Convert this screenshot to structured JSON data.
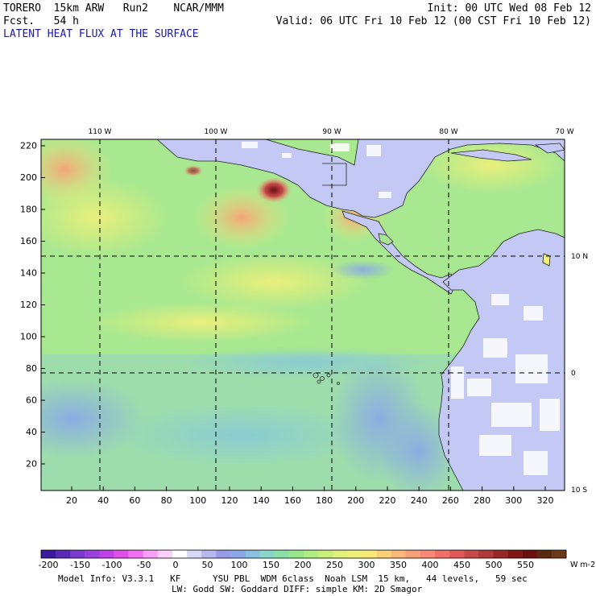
{
  "header": {
    "left_line1": "TORERO  15km ARW   Run2    NCAR/MMM",
    "left_line2": "Fcst.   54 h",
    "right_line1": "Init: 00 UTC Wed 08 Feb 12",
    "right_line2": "Valid: 06 UTC Fri 10 Feb 12 (00 CST Fri 10 Feb 12)",
    "title": "LATENT HEAT FLUX AT THE SURFACE"
  },
  "map": {
    "lon_labels": [
      "110 W",
      "100 W",
      "90 W",
      "80 W",
      "70 W"
    ],
    "lat_labels": [
      "10 N",
      "0",
      "10 S"
    ],
    "y_ticks": [
      "220",
      "200",
      "180",
      "160",
      "140",
      "120",
      "100",
      "80",
      "60",
      "40",
      "20"
    ],
    "x_ticks": [
      "20",
      "40",
      "60",
      "80",
      "100",
      "120",
      "140",
      "160",
      "180",
      "200",
      "220",
      "240",
      "260",
      "280",
      "300",
      "320"
    ]
  },
  "colorbar": {
    "labels": [
      "-200",
      "-150",
      "-100",
      "-50",
      "0",
      "50",
      "100",
      "150",
      "200",
      "250",
      "300",
      "350",
      "400",
      "450",
      "500",
      "550"
    ],
    "unit": "W m-2",
    "colors": [
      "#3a1a9e",
      "#5a2ab8",
      "#7a3ad0",
      "#9a40e0",
      "#c040e8",
      "#e050e8",
      "#f070f0",
      "#f8a0f8",
      "#fcd0fc",
      "#ffffff",
      "#d8d8f8",
      "#b8b8f0",
      "#9a9ae8",
      "#8aa8e8",
      "#88c0e0",
      "#88d8c8",
      "#8ae0a8",
      "#98e88a",
      "#b0ec80",
      "#c8f078",
      "#e0f078",
      "#f0f078",
      "#f8e878",
      "#f8d078",
      "#f8b878",
      "#f8a078",
      "#f88878",
      "#f07068",
      "#e05858",
      "#c84848",
      "#b03838",
      "#982828",
      "#801818",
      "#6a1010",
      "#5a2a10",
      "#6b3a18"
    ]
  },
  "footer": {
    "line1": "Model Info: V3.3.1   KF      YSU PBL  WDM 6class  Noah LSM  15 km,   44 levels,   59 sec",
    "line2": "LW: Godd SW: Goddard DIFF: simple KM: 2D Smagor"
  }
}
